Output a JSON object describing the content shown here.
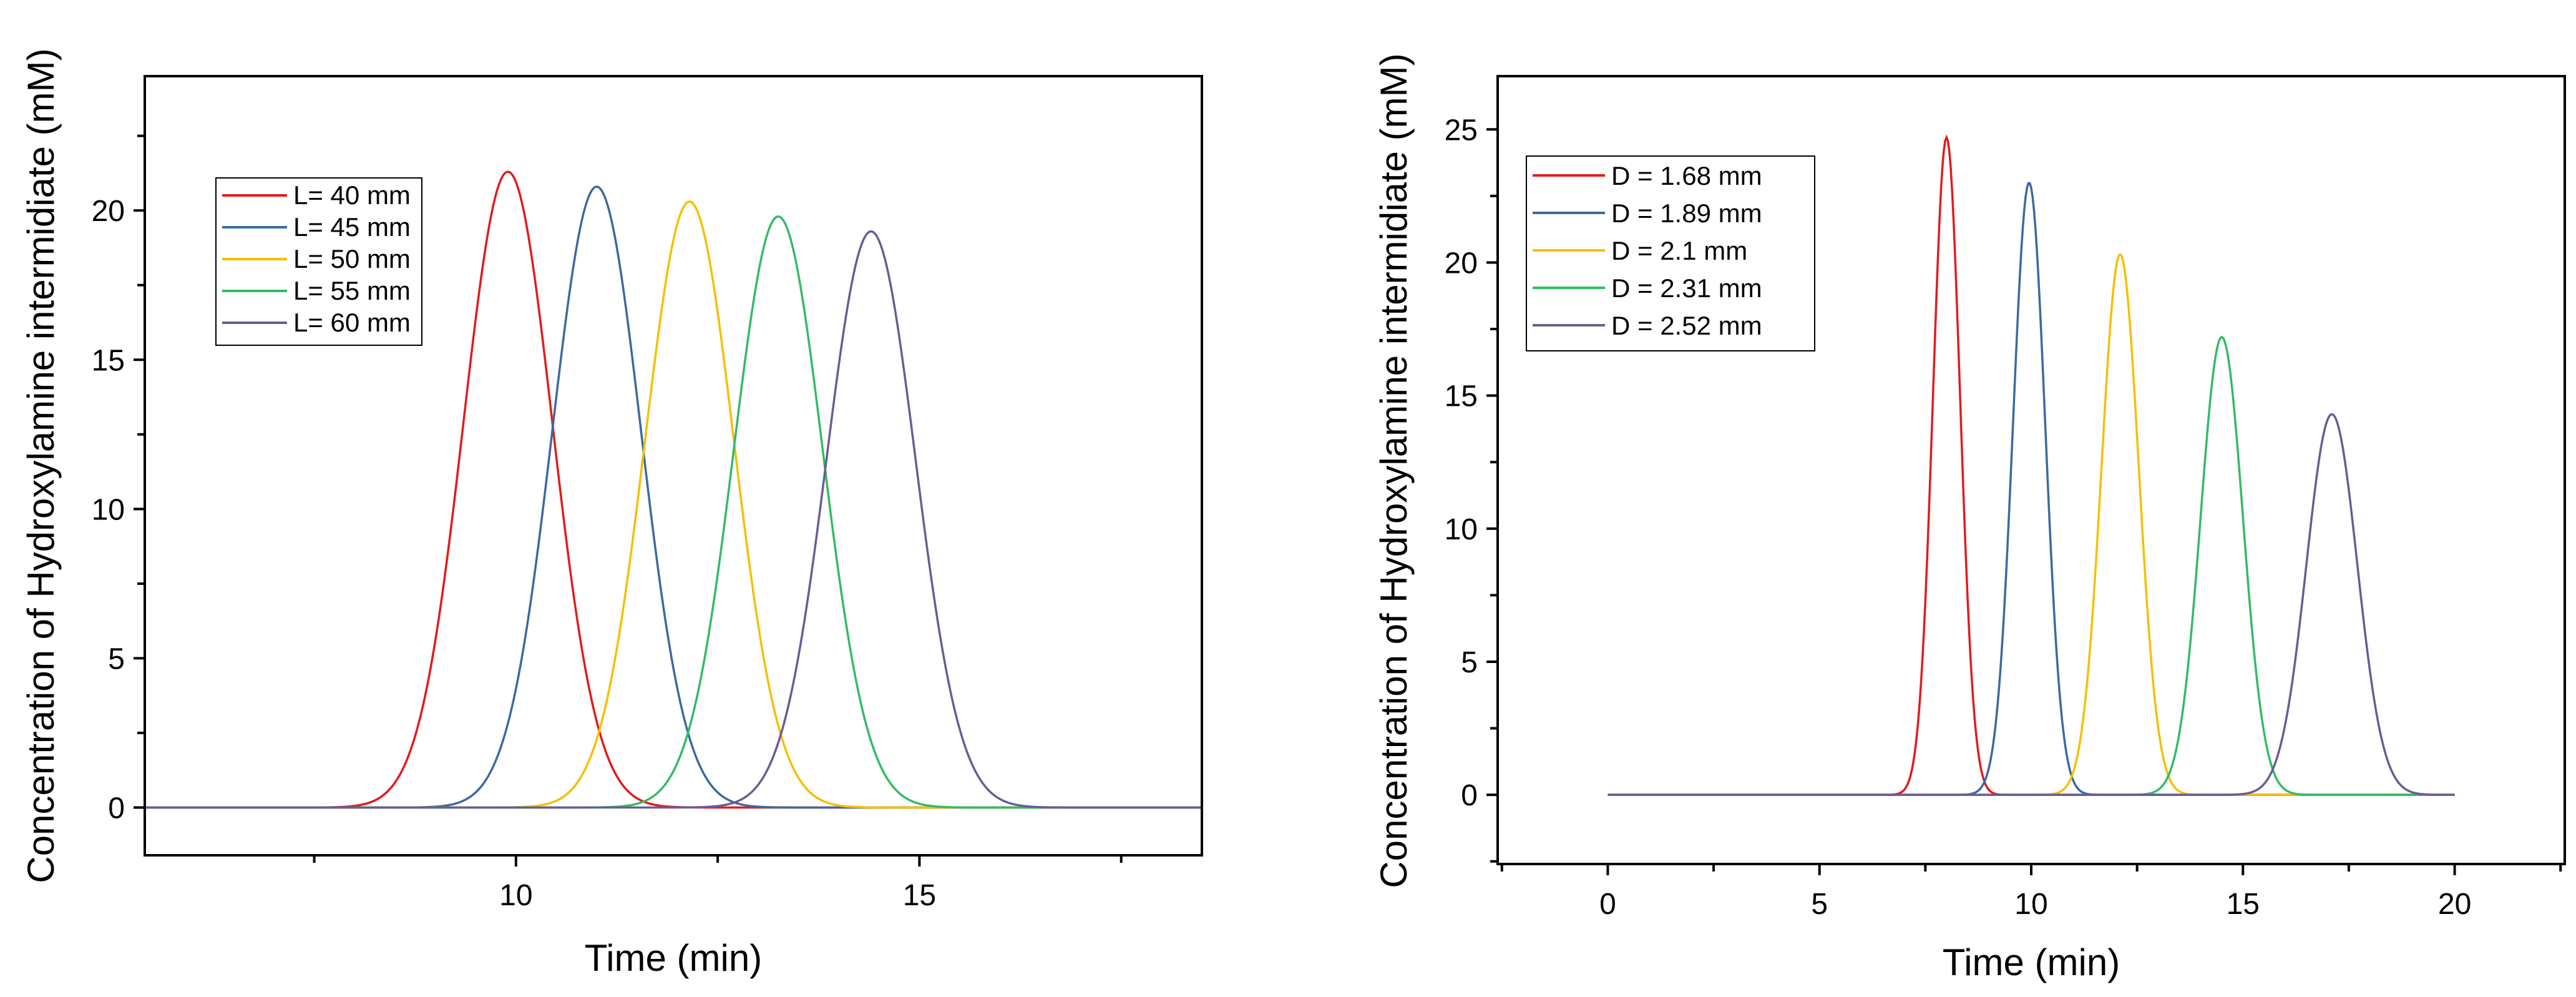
{
  "chart_data": [
    {
      "type": "line",
      "xlabel": "Time (min)",
      "ylabel": "Concentration of Hydroxylamine intermidiate (mM)",
      "xlim": [
        5.4,
        18.5
      ],
      "ylim": [
        -1.6,
        24.5
      ],
      "x_ticks": [
        10,
        15
      ],
      "x_minor_ticks": [
        7.5,
        12.5,
        17.5
      ],
      "y_ticks": [
        0,
        5,
        10,
        15,
        20
      ],
      "legend_position": "top-left",
      "series": [
        {
          "name": "L= 40 mm",
          "color": "#e41a1c",
          "peak_x": 9.9,
          "peak_y": 21.3,
          "sigma": 0.55,
          "x_start": 5.4,
          "x_end": 18.5
        },
        {
          "name": "L= 45 mm",
          "color": "#3b6aa0",
          "peak_x": 11.0,
          "peak_y": 20.8,
          "sigma": 0.55,
          "x_start": 5.4,
          "x_end": 18.5
        },
        {
          "name": "L= 50 mm",
          "color": "#f5c000",
          "peak_x": 12.15,
          "peak_y": 20.3,
          "sigma": 0.55,
          "x_start": 5.4,
          "x_end": 18.5
        },
        {
          "name": "L= 55 mm",
          "color": "#33bb66",
          "peak_x": 13.25,
          "peak_y": 19.8,
          "sigma": 0.55,
          "x_start": 5.4,
          "x_end": 18.5
        },
        {
          "name": "L= 60 mm",
          "color": "#6b5b95",
          "peak_x": 14.4,
          "peak_y": 19.3,
          "sigma": 0.55,
          "x_start": 5.4,
          "x_end": 18.5
        }
      ]
    },
    {
      "type": "line",
      "xlabel": "Time (min)",
      "ylabel": "Concentration of Hydroxylamine intermidiate (mM)",
      "xlim": [
        -2.6,
        22.6
      ],
      "ylim": [
        -2.6,
        27.0
      ],
      "x_ticks": [
        0,
        5,
        10,
        15,
        20
      ],
      "x_minor_ticks": [
        -2.5,
        2.5,
        7.5,
        12.5,
        17.5,
        22.5
      ],
      "y_ticks": [
        0,
        5,
        10,
        15,
        20,
        25
      ],
      "legend_position": "top-left",
      "series": [
        {
          "name": "D = 1.68 mm",
          "color": "#e41a1c",
          "peak_x": 8.0,
          "peak_y": 24.7,
          "sigma": 0.32,
          "x_start": 0,
          "x_end": 20
        },
        {
          "name": "D = 1.89 mm",
          "color": "#3b6aa0",
          "peak_x": 9.95,
          "peak_y": 23.0,
          "sigma": 0.38,
          "x_start": 0,
          "x_end": 20
        },
        {
          "name": "D = 2.1 mm",
          "color": "#f5c000",
          "peak_x": 12.1,
          "peak_y": 20.3,
          "sigma": 0.44,
          "x_start": 0,
          "x_end": 20
        },
        {
          "name": "D = 2.31 mm",
          "color": "#33bb66",
          "peak_x": 14.5,
          "peak_y": 17.2,
          "sigma": 0.5,
          "x_start": 0,
          "x_end": 20
        },
        {
          "name": "D = 2.52 mm",
          "color": "#6b5b95",
          "peak_x": 17.1,
          "peak_y": 14.3,
          "sigma": 0.6,
          "x_start": 0,
          "x_end": 20
        }
      ]
    }
  ]
}
